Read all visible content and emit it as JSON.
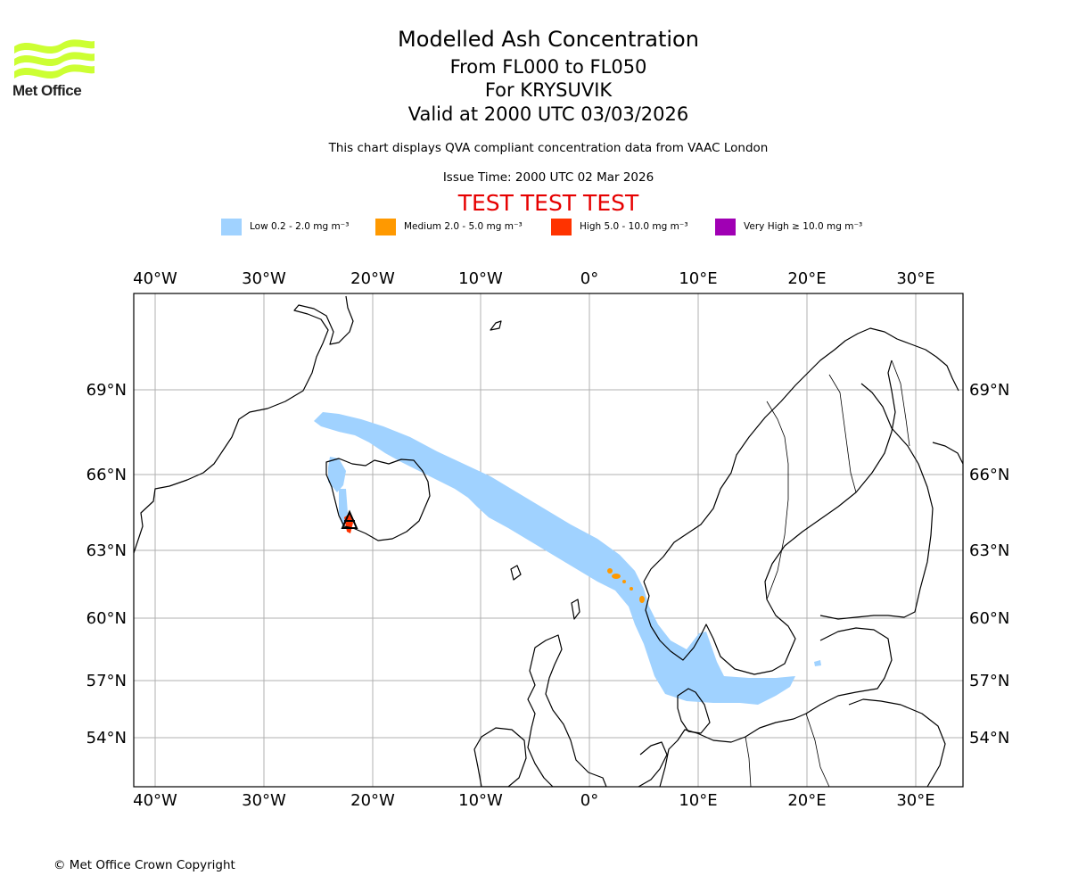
{
  "titles": {
    "main": "Modelled Ash Concentration",
    "levels": "From FL000 to FL050",
    "volcano": "For KRYSUVIK",
    "valid": "Valid at 2000 UTC 03/03/2026"
  },
  "description": "This chart displays QVA compliant concentration data from VAAC London",
  "issue_time": "Issue Time: 2000 UTC 02 Mar 2026",
  "test_banner": "TEST TEST TEST",
  "logo": {
    "text": "Met Office",
    "color": "#ccff33"
  },
  "legend": [
    {
      "label": "Low 0.2 - 2.0 mg m⁻³",
      "color": "#a0d2ff"
    },
    {
      "label": "Medium 2.0 - 5.0 mg m⁻³",
      "color": "#ff9900"
    },
    {
      "label": "High 5.0 - 10.0 mg m⁻³",
      "color": "#ff3300"
    },
    {
      "label": "Very High ≥ 10.0 mg m⁻³",
      "color": "#a000b4"
    }
  ],
  "map": {
    "lon_ticks": [
      "40°W",
      "30°W",
      "20°W",
      "10°W",
      "0°",
      "10°E",
      "20°E",
      "30°E"
    ],
    "lat_ticks": [
      "69°N",
      "66°N",
      "63°N",
      "60°N",
      "57°N",
      "54°N"
    ],
    "volcano_name": "KRYSUVIK"
  },
  "copyright": "© Met Office Crown Copyright"
}
